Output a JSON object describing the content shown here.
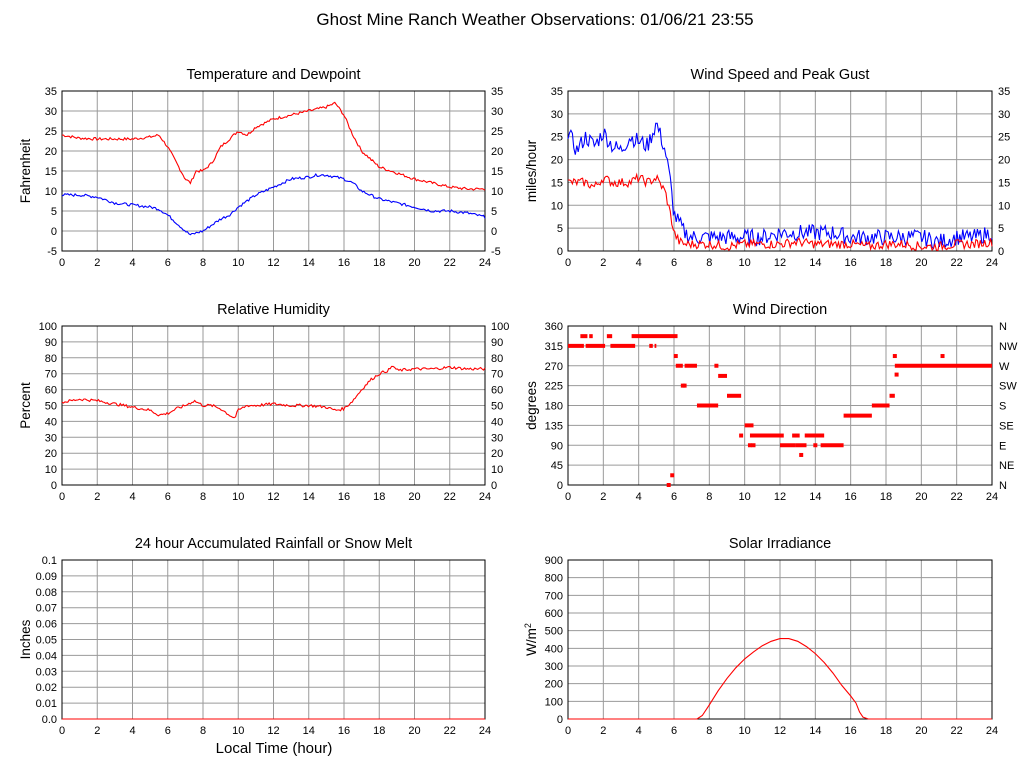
{
  "page_title": "Ghost Mine Ranch Weather Observations: 01/06/21 23:55",
  "bottom_xlabel": "Local Time (hour)",
  "colors": {
    "red": "#ff0000",
    "blue": "#0000ff",
    "grid": "#9a9a9a"
  },
  "chart_data": [
    {
      "id": "temp",
      "type": "line",
      "title": "Temperature and Dewpoint",
      "ylabel": "Fahrenheit",
      "xlim": [
        0,
        24
      ],
      "xticks": [
        0,
        2,
        4,
        6,
        8,
        10,
        12,
        14,
        16,
        18,
        20,
        22,
        24
      ],
      "ylim": [
        -5,
        35
      ],
      "yticks": [
        -5,
        0,
        5,
        10,
        15,
        20,
        25,
        30,
        35
      ],
      "right_axis": true,
      "series": [
        {
          "name": "Temperature",
          "color": "#ff0000",
          "x": [
            0,
            1,
            2,
            3,
            4,
            5,
            5.5,
            6,
            6.5,
            7,
            7.3,
            7.6,
            8,
            8.5,
            9,
            9.5,
            10,
            10.5,
            11,
            12,
            13,
            14,
            14.5,
            15,
            15.5,
            16,
            16.5,
            17,
            18,
            19,
            20,
            21,
            22,
            23,
            24
          ],
          "y": [
            24,
            23.2,
            23,
            23,
            23,
            23.5,
            24,
            21,
            17,
            13,
            12,
            15,
            15,
            17,
            21,
            23,
            25,
            24,
            26,
            28,
            29,
            30,
            30.5,
            31,
            32,
            29,
            24,
            20,
            16,
            14.5,
            13,
            12,
            11,
            10.5,
            10.5
          ]
        },
        {
          "name": "Dewpoint",
          "color": "#0000ff",
          "x": [
            0,
            1,
            2,
            3,
            4,
            5,
            5.5,
            6,
            6.5,
            7,
            7.3,
            7.6,
            8,
            8.5,
            9,
            9.5,
            10,
            11,
            12,
            13,
            14,
            14.5,
            15,
            16,
            16.5,
            17,
            18,
            19,
            20,
            21,
            22,
            23,
            24
          ],
          "y": [
            9,
            9,
            8.5,
            7,
            6.5,
            6,
            5.5,
            4,
            2,
            0,
            -1,
            -0.5,
            0,
            1.5,
            3,
            4,
            6,
            9,
            11,
            13,
            13.5,
            14,
            14,
            13,
            12,
            10,
            8,
            7,
            6,
            5,
            5,
            4.5,
            3.5
          ]
        }
      ]
    },
    {
      "id": "wind",
      "type": "line",
      "title": "Wind Speed and Peak Gust",
      "ylabel": "miles/hour",
      "xlim": [
        0,
        24
      ],
      "xticks": [
        0,
        2,
        4,
        6,
        8,
        10,
        12,
        14,
        16,
        18,
        20,
        22,
        24
      ],
      "ylim": [
        0,
        35
      ],
      "yticks": [
        0,
        5,
        10,
        15,
        20,
        25,
        30,
        35
      ],
      "right_axis": true,
      "series": [
        {
          "name": "Peak Gust",
          "color": "#0000ff",
          "x": [
            0,
            0.5,
            1,
            1.5,
            2,
            2.5,
            3,
            3.5,
            4,
            4.5,
            5,
            5.5,
            5.8,
            6,
            6.3,
            6.6,
            7,
            8,
            9,
            10,
            11,
            12,
            13,
            14,
            15,
            16,
            17,
            18,
            19,
            20,
            21,
            22,
            23,
            24
          ],
          "y": [
            26,
            22,
            25,
            23,
            26,
            23,
            22,
            25,
            24,
            23,
            28,
            22,
            15,
            8,
            6,
            4,
            3,
            3,
            3,
            3,
            3,
            4,
            4,
            4,
            4,
            3,
            3,
            3,
            3,
            3,
            2,
            3,
            3,
            4
          ]
        },
        {
          "name": "Wind Speed",
          "color": "#ff0000",
          "x": [
            0,
            0.5,
            1,
            1.5,
            2,
            2.5,
            3,
            3.5,
            4,
            4.5,
            5,
            5.5,
            5.8,
            6,
            6.3,
            6.6,
            7,
            8,
            9,
            10,
            11,
            12,
            13,
            14,
            15,
            16,
            17,
            18,
            19,
            20,
            21,
            22,
            23,
            24
          ],
          "y": [
            15,
            15,
            15,
            14,
            16,
            15,
            15,
            15,
            16,
            15,
            16,
            13,
            8,
            4,
            2,
            1.5,
            1.5,
            1.5,
            1,
            1.5,
            1.5,
            1.5,
            2,
            1.5,
            1.5,
            1.5,
            1,
            1.5,
            1.5,
            1,
            1,
            1.5,
            1.5,
            2
          ]
        }
      ]
    },
    {
      "id": "rh",
      "type": "line",
      "title": "Relative Humidity",
      "ylabel": "Percent",
      "xlim": [
        0,
        24
      ],
      "xticks": [
        0,
        2,
        4,
        6,
        8,
        10,
        12,
        14,
        16,
        18,
        20,
        22,
        24
      ],
      "ylim": [
        0,
        100
      ],
      "yticks": [
        0,
        10,
        20,
        30,
        40,
        50,
        60,
        70,
        80,
        90,
        100
      ],
      "right_axis": true,
      "series": [
        {
          "name": "Relative Humidity",
          "color": "#ff0000",
          "x": [
            0,
            1,
            2,
            3,
            4,
            5,
            5.5,
            6,
            6.5,
            7,
            7.5,
            8,
            8.5,
            9,
            9.5,
            9.8,
            10,
            10.5,
            11,
            12,
            13,
            14,
            15,
            15.5,
            16,
            16.5,
            17,
            17.5,
            18,
            18.5,
            18.8,
            19,
            20,
            21,
            22,
            23,
            24
          ],
          "y": [
            52,
            54,
            53,
            51,
            49,
            47,
            44,
            45,
            48,
            50,
            53,
            50,
            50,
            48,
            44,
            42,
            47,
            50,
            50,
            51,
            50,
            50,
            49,
            47,
            48,
            53,
            60,
            66,
            70,
            72,
            75,
            72,
            73,
            73,
            74,
            73,
            73
          ]
        }
      ]
    },
    {
      "id": "wdir",
      "type": "scatter",
      "title": "Wind Direction",
      "ylabel": "degrees",
      "xlim": [
        0,
        24
      ],
      "xticks": [
        0,
        2,
        4,
        6,
        8,
        10,
        12,
        14,
        16,
        18,
        20,
        22,
        24
      ],
      "ylim": [
        0,
        360
      ],
      "yticks": [
        0,
        45,
        90,
        135,
        180,
        225,
        270,
        315,
        360
      ],
      "right_labels": [
        "N",
        "NE",
        "E",
        "SE",
        "S",
        "SW",
        "W",
        "NW",
        "N"
      ],
      "series": [
        {
          "name": "Wind Direction",
          "color": "#ff0000",
          "segments": [
            [
              0,
              0.9,
              315
            ],
            [
              0.7,
              1.1,
              337
            ],
            [
              1.2,
              1.4,
              337
            ],
            [
              1.0,
              2.1,
              315
            ],
            [
              2.2,
              2.5,
              337
            ],
            [
              2.4,
              3.8,
              315
            ],
            [
              3.6,
              6.2,
              337
            ],
            [
              4.6,
              4.8,
              315
            ],
            [
              4.9,
              5.0,
              315
            ],
            [
              6.1,
              6.5,
              270
            ],
            [
              6.6,
              7.3,
              270
            ],
            [
              7.3,
              8.5,
              180
            ],
            [
              8.5,
              9.0,
              247
            ],
            [
              9.0,
              9.8,
              202
            ],
            [
              10.0,
              10.5,
              135
            ],
            [
              10.3,
              12.0,
              112
            ],
            [
              12.0,
              12.9,
              90
            ],
            [
              12.9,
              13.5,
              90
            ],
            [
              13.4,
              14.5,
              112
            ],
            [
              14.3,
              15.6,
              90
            ],
            [
              15.6,
              17.2,
              157
            ],
            [
              17.2,
              18.2,
              180
            ],
            [
              18.2,
              18.5,
              202
            ],
            [
              18.5,
              24,
              270
            ]
          ],
          "points": [
            [
              5.7,
              0
            ],
            [
              5.9,
              22
            ],
            [
              6.1,
              292
            ],
            [
              6.5,
              225
            ],
            [
              6.6,
              225
            ],
            [
              8.4,
              270
            ],
            [
              9.8,
              112
            ],
            [
              10.3,
              90
            ],
            [
              10.5,
              90
            ],
            [
              12.1,
              112
            ],
            [
              12.8,
              112
            ],
            [
              13.0,
              112
            ],
            [
              13.2,
              68
            ],
            [
              14.0,
              90
            ],
            [
              18.5,
              292
            ],
            [
              18.6,
              250
            ],
            [
              21.2,
              292
            ]
          ]
        }
      ]
    },
    {
      "id": "rain",
      "type": "line",
      "title": "24 hour Accumulated Rainfall or Snow Melt",
      "ylabel": "Inches",
      "xlim": [
        0,
        24
      ],
      "xticks": [
        0,
        2,
        4,
        6,
        8,
        10,
        12,
        14,
        16,
        18,
        20,
        22,
        24
      ],
      "ylim": [
        0,
        0.1
      ],
      "yticks": [
        0,
        0.01,
        0.02,
        0.03,
        0.04,
        0.05,
        0.06,
        0.07,
        0.08,
        0.09,
        0.1
      ],
      "ytick_labels": [
        "0.0",
        "0.01",
        "0.02",
        "0.03",
        "0.04",
        "0.05",
        "0.06",
        "0.07",
        "0.08",
        "0.09",
        "0.1"
      ],
      "series": [
        {
          "name": "Rainfall",
          "color": "#ff0000",
          "x": [
            0,
            24
          ],
          "y": [
            0,
            0
          ]
        }
      ]
    },
    {
      "id": "solar",
      "type": "line",
      "title": "Solar Irradiance",
      "ylabel": "W/m",
      "ylabel_sup": "2",
      "xlim": [
        0,
        24
      ],
      "xticks": [
        0,
        2,
        4,
        6,
        8,
        10,
        12,
        14,
        16,
        18,
        20,
        22,
        24
      ],
      "ylim": [
        0,
        900
      ],
      "yticks": [
        0,
        100,
        200,
        300,
        400,
        500,
        600,
        700,
        800,
        900
      ],
      "series": [
        {
          "name": "Solar Irradiance",
          "color": "#ff0000",
          "x": [
            0,
            7.3,
            7.6,
            8,
            8.5,
            9,
            9.5,
            10,
            10.5,
            11,
            11.5,
            12,
            12.5,
            13,
            13.5,
            14,
            14.5,
            15,
            15.5,
            16,
            16.3,
            16.5,
            16.7,
            17,
            17.5,
            24
          ],
          "y": [
            0,
            0,
            20,
            80,
            160,
            230,
            290,
            340,
            380,
            415,
            440,
            455,
            455,
            440,
            410,
            370,
            320,
            260,
            190,
            130,
            90,
            40,
            10,
            0,
            0,
            0
          ]
        }
      ]
    }
  ]
}
